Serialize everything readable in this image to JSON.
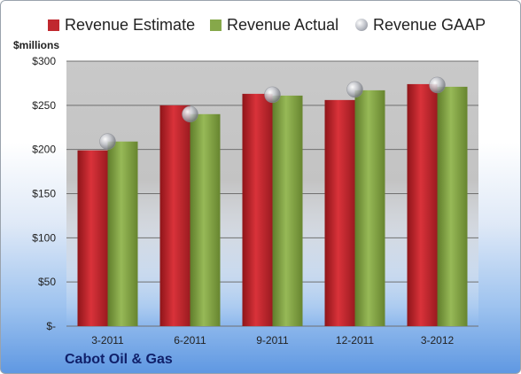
{
  "legend": {
    "items": [
      {
        "label": "Revenue Estimate",
        "color": "#c0282e",
        "icon": "bar-swatch-icon"
      },
      {
        "label": "Revenue Actual",
        "color": "#86a84a",
        "icon": "bar-swatch-icon"
      },
      {
        "label": "Revenue GAAP",
        "color": "#b9bcc4",
        "icon": "circle-marker-icon"
      }
    ]
  },
  "chart_data": {
    "type": "bar",
    "title": "",
    "xlabel": "",
    "ylabel": "$millions",
    "categories": [
      "3-2011",
      "6-2011",
      "9-2011",
      "12-2011",
      "3-2012"
    ],
    "series": [
      {
        "name": "Revenue Estimate",
        "type": "bar",
        "color": "#c0282e",
        "values": [
          199,
          250,
          263,
          256,
          274
        ]
      },
      {
        "name": "Revenue Actual",
        "type": "bar",
        "color": "#86a84a",
        "values": [
          209,
          240,
          261,
          267,
          271
        ]
      },
      {
        "name": "Revenue GAAP",
        "type": "scatter",
        "color": "#b9bcc4",
        "values": [
          209,
          240,
          262,
          268,
          273
        ]
      }
    ],
    "ylim": [
      0,
      300
    ],
    "yticks": [
      0,
      50,
      100,
      150,
      200,
      250,
      300
    ],
    "ytick_labels": [
      "$-",
      "$50",
      "$100",
      "$150",
      "$200",
      "$250",
      "$300"
    ],
    "grid": true,
    "legend_position": "top"
  },
  "footer": {
    "company": "Cabot Oil & Gas"
  }
}
